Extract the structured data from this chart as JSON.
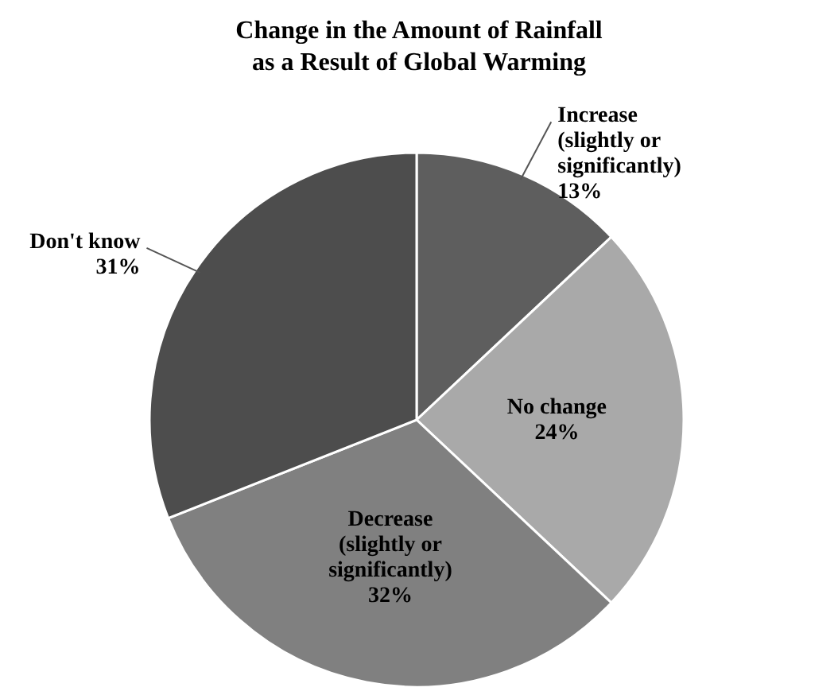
{
  "chart_data": {
    "type": "pie",
    "title": "Change in the Amount of Rainfall\nas a Result of Global Warming",
    "categories": [
      "Increase (slightly or significantly)",
      "No change",
      "Decrease (slightly or significantly)",
      "Don't know"
    ],
    "values": [
      13,
      24,
      32,
      31
    ],
    "value_labels": [
      "13%",
      "24%",
      "32%",
      "31%"
    ],
    "colors": [
      "#5e5e5e",
      "#a9a9a9",
      "#808080",
      "#4d4d4d"
    ]
  }
}
